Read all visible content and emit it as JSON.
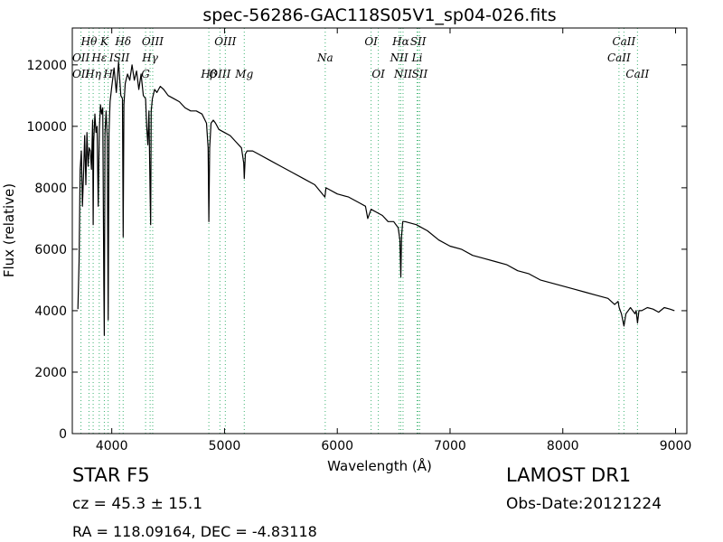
{
  "chart_data": {
    "type": "line",
    "title": "spec-56286-GAC118S05V1_sp04-026.fits",
    "xlabel": "Wavelength (Å)",
    "ylabel": "Flux (relative)",
    "xlim": [
      3650,
      9100
    ],
    "ylim": [
      0,
      13200
    ],
    "xticks": [
      4000,
      5000,
      6000,
      7000,
      8000,
      9000
    ],
    "yticks": [
      0,
      2000,
      4000,
      6000,
      8000,
      10000,
      12000
    ],
    "grid": false,
    "series": [
      {
        "color": "#000000",
        "x": [
          3700,
          3710,
          3720,
          3730,
          3740,
          3750,
          3760,
          3770,
          3780,
          3790,
          3800,
          3810,
          3820,
          3830,
          3835,
          3840,
          3850,
          3860,
          3870,
          3880,
          3890,
          3900,
          3910,
          3920,
          3930,
          3934,
          3940,
          3950,
          3960,
          3968,
          3975,
          3985,
          4000,
          4020,
          4040,
          4060,
          4080,
          4095,
          4101,
          4108,
          4120,
          4140,
          4160,
          4180,
          4200,
          4220,
          4240,
          4260,
          4280,
          4300,
          4310,
          4320,
          4330,
          4340,
          4345,
          4350,
          4360,
          4380,
          4400,
          4430,
          4460,
          4500,
          4550,
          4600,
          4650,
          4700,
          4750,
          4800,
          4840,
          4855,
          4861,
          4868,
          4880,
          4900,
          4920,
          4950,
          5000,
          5050,
          5100,
          5150,
          5170,
          5175,
          5185,
          5200,
          5250,
          5300,
          5400,
          5500,
          5600,
          5700,
          5800,
          5890,
          5900,
          6000,
          6100,
          6200,
          6250,
          6270,
          6300,
          6350,
          6400,
          6450,
          6500,
          6540,
          6555,
          6563,
          6570,
          6580,
          6600,
          6700,
          6800,
          6900,
          7000,
          7100,
          7200,
          7300,
          7400,
          7500,
          7600,
          7700,
          7800,
          7900,
          8000,
          8100,
          8200,
          8300,
          8400,
          8460,
          8490,
          8500,
          8520,
          8542,
          8560,
          8600,
          8640,
          8650,
          8662,
          8675,
          8700,
          8750,
          8800,
          8850,
          8900,
          8950,
          8990
        ],
        "y": [
          4050,
          5600,
          8600,
          9200,
          7400,
          8500,
          9700,
          8100,
          9800,
          8700,
          9300,
          9200,
          8600,
          10200,
          6800,
          9500,
          10400,
          9800,
          10000,
          7400,
          9900,
          10700,
          10400,
          10600,
          4800,
          3200,
          9800,
          10500,
          9600,
          3700,
          9800,
          10800,
          11300,
          11900,
          11100,
          12100,
          11000,
          10900,
          6400,
          10700,
          11400,
          11700,
          11500,
          12000,
          11500,
          11800,
          11200,
          11700,
          11000,
          10900,
          10000,
          9400,
          10500,
          7800,
          6800,
          10500,
          10900,
          11200,
          11100,
          11300,
          11200,
          11000,
          10900,
          10800,
          10600,
          10500,
          10500,
          10400,
          10100,
          9300,
          6900,
          9300,
          10100,
          10200,
          10100,
          9900,
          9800,
          9700,
          9500,
          9300,
          8800,
          8300,
          9100,
          9200,
          9200,
          9100,
          8900,
          8700,
          8500,
          8300,
          8100,
          7700,
          8000,
          7800,
          7700,
          7500,
          7400,
          7000,
          7300,
          7200,
          7100,
          6900,
          6900,
          6700,
          6300,
          5100,
          6400,
          6900,
          6900,
          6800,
          6600,
          6300,
          6100,
          6000,
          5800,
          5700,
          5600,
          5500,
          5300,
          5200,
          5000,
          4900,
          4800,
          4700,
          4600,
          4500,
          4400,
          4200,
          4300,
          4100,
          3900,
          3500,
          3900,
          4100,
          3900,
          4000,
          3600,
          4000,
          4000,
          4100,
          4050,
          3950,
          4100,
          4050,
          4000
        ]
      }
    ],
    "line_labels": [
      {
        "text": "Hθ",
        "wl": 3798,
        "row": 1
      },
      {
        "text": "K",
        "wl": 3934,
        "row": 1
      },
      {
        "text": "Hδ",
        "wl": 4101,
        "row": 1
      },
      {
        "text": "OIII",
        "wl": 4363,
        "row": 1
      },
      {
        "text": "OIII",
        "wl": 5007,
        "row": 1
      },
      {
        "text": "OI",
        "wl": 6300,
        "row": 1
      },
      {
        "text": "Hα",
        "wl": 6563,
        "row": 1
      },
      {
        "text": "SII",
        "wl": 6717,
        "row": 1
      },
      {
        "text": "CaII",
        "wl": 8542,
        "row": 1
      },
      {
        "text": "OII",
        "wl": 3727,
        "row": 2
      },
      {
        "text": "Hε",
        "wl": 3889,
        "row": 2
      },
      {
        "text": "ISII",
        "wl": 4068,
        "row": 2
      },
      {
        "text": "Hγ",
        "wl": 4340,
        "row": 2
      },
      {
        "text": "Na",
        "wl": 5893,
        "row": 2
      },
      {
        "text": "NII",
        "wl": 6548,
        "row": 2
      },
      {
        "text": "Li",
        "wl": 6708,
        "row": 2
      },
      {
        "text": "CaII",
        "wl": 8498,
        "row": 2
      },
      {
        "text": "OII",
        "wl": 3727,
        "row": 3
      },
      {
        "text": "Hη",
        "wl": 3835,
        "row": 3
      },
      {
        "text": "H",
        "wl": 3968,
        "row": 3
      },
      {
        "text": "G",
        "wl": 4300,
        "row": 3
      },
      {
        "text": "Hβ",
        "wl": 4861,
        "row": 3
      },
      {
        "text": "OIII",
        "wl": 4959,
        "row": 3
      },
      {
        "text": "Mg",
        "wl": 5175,
        "row": 3
      },
      {
        "text": "OI",
        "wl": 6364,
        "row": 3
      },
      {
        "text": "NII",
        "wl": 6583,
        "row": 3
      },
      {
        "text": "SII",
        "wl": 6731,
        "row": 3
      },
      {
        "text": "CaII",
        "wl": 8662,
        "row": 3
      }
    ]
  },
  "info": {
    "class": "STAR   F5",
    "redshift": "cz = 45.3  ± 15.1",
    "coords": "RA = 118.09164, DEC = -4.83118",
    "survey": "LAMOST DR1",
    "obs_date": "Obs-Date:20121224"
  }
}
